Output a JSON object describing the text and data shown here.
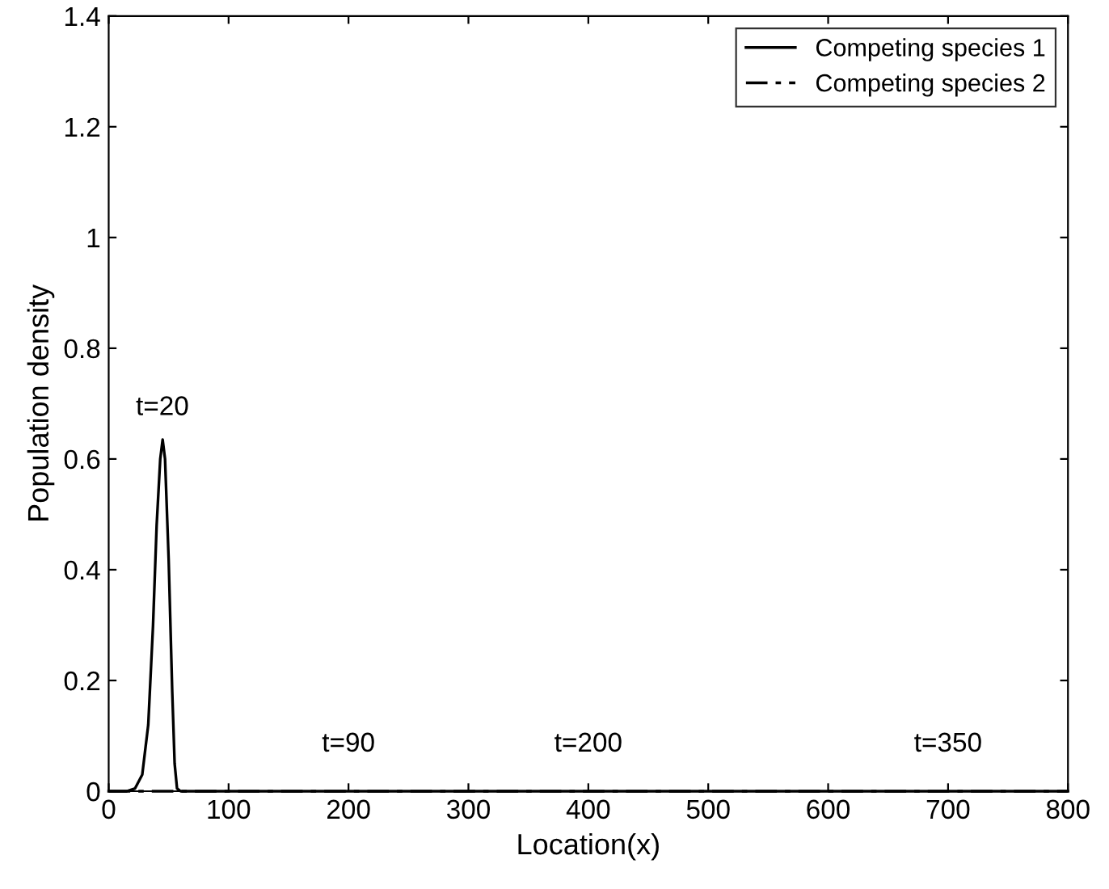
{
  "chart_data": {
    "type": "line",
    "xlabel": "Location(x)",
    "ylabel": "Population density",
    "xlim": [
      0,
      800
    ],
    "ylim": [
      0,
      1.4
    ],
    "xticks": [
      0,
      100,
      200,
      300,
      400,
      500,
      600,
      700,
      800
    ],
    "yticks": [
      0,
      0.2,
      0.4,
      0.6,
      0.8,
      1,
      1.2,
      1.4
    ],
    "legend": "top right",
    "grid": false,
    "series": [
      {
        "name": "Competing species 1",
        "color": "#000000",
        "line_style": "solid",
        "x": [
          0,
          15,
          22,
          28,
          33,
          37,
          40,
          43,
          45,
          47,
          50,
          53,
          55,
          57,
          60,
          100,
          800
        ],
        "values": [
          0,
          0,
          0.005,
          0.03,
          0.12,
          0.3,
          0.48,
          0.6,
          0.635,
          0.6,
          0.42,
          0.18,
          0.05,
          0.005,
          0,
          0,
          0
        ]
      },
      {
        "name": "Competing species 2",
        "color": "#000000",
        "line_style": "dashdot",
        "x": [
          0,
          400,
          800
        ],
        "values": [
          0,
          0,
          0
        ]
      }
    ],
    "annotations": [
      "t=20",
      "t=90",
      "t=200",
      "t=350"
    ]
  }
}
